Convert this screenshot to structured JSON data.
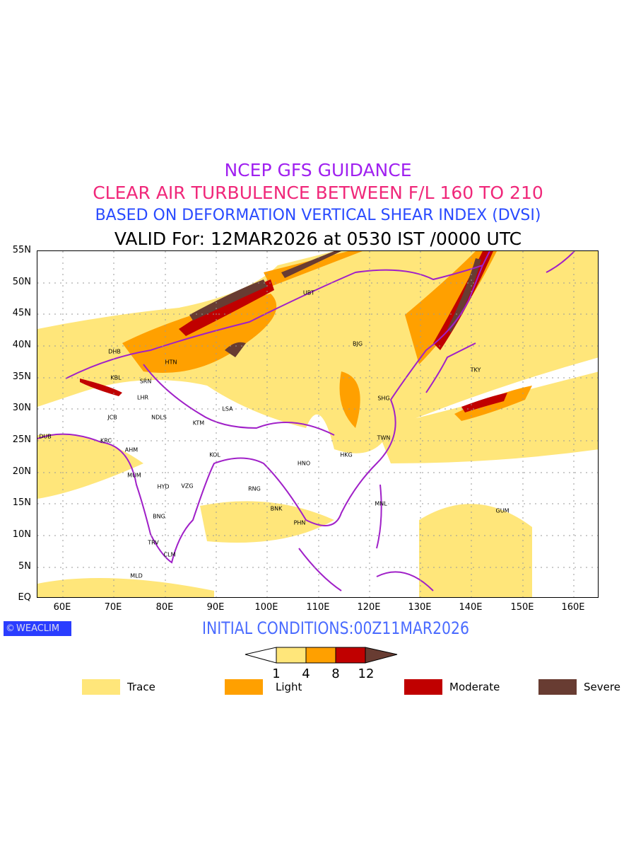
{
  "titles": {
    "line1": "NCEP GFS GUIDANCE",
    "line2": "CLEAR AIR TURBULENCE BETWEEN F/L 160 TO 210",
    "line3": "BASED ON DEFORMATION VERTICAL SHEAR INDEX (DVSI)",
    "line4": "VALID For: 12MAR2026 at 0530 IST /0000 UTC"
  },
  "axes": {
    "lat": [
      "55N",
      "50N",
      "45N",
      "40N",
      "35N",
      "30N",
      "25N",
      "20N",
      "15N",
      "10N",
      "5N",
      "EQ"
    ],
    "lon": [
      "60E",
      "70E",
      "80E",
      "90E",
      "100E",
      "110E",
      "120E",
      "130E",
      "140E",
      "150E",
      "160E"
    ]
  },
  "cities": [
    "DHB",
    "HTN",
    "KBL",
    "SRN",
    "LHR",
    "JCB",
    "NDLS",
    "KTM",
    "LSA",
    "DUB",
    "KRC",
    "AHM",
    "KOL",
    "MUM",
    "HYD",
    "VZG",
    "RNG",
    "BNK",
    "PHN",
    "HNO",
    "HKG",
    "TWN",
    "SHG",
    "BJG",
    "UBT",
    "TKY",
    "MNL",
    "GUM",
    "BNG",
    "TRV",
    "CLM",
    "MLD"
  ],
  "brand": "WEACLIM",
  "initial_conditions": "INITIAL CONDITIONS:00Z11MAR2026",
  "colorbar": {
    "ticks": [
      "1",
      "4",
      "8",
      "12"
    ],
    "colors": [
      "#ffe67a",
      "#ffa000",
      "#c00000",
      "#683c32"
    ]
  },
  "legend": [
    {
      "label": "Trace",
      "color": "#ffe67a"
    },
    {
      "label": "Light",
      "color": "#ffa000"
    },
    {
      "label": "Moderate",
      "color": "#c00000"
    },
    {
      "label": "Severe",
      "color": "#683c32"
    }
  ],
  "colors": {
    "border": "#a020c8"
  }
}
